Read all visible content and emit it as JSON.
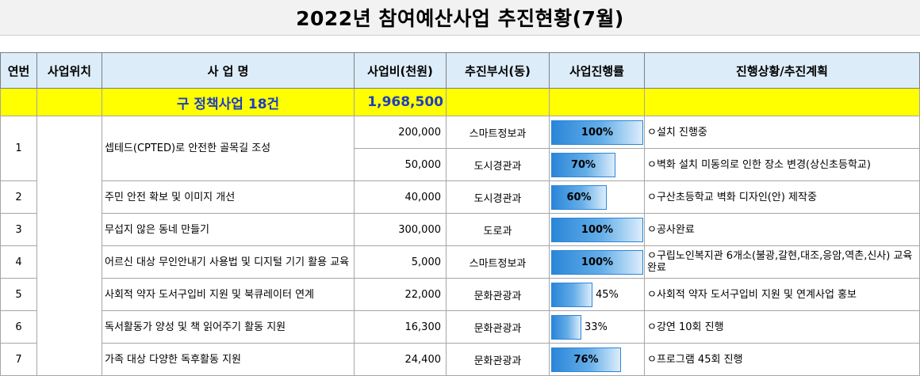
{
  "title": "2022년 참여예산사업 추진현황(7월)",
  "headers": {
    "no": "연번",
    "location": "사업위치",
    "name": "사 업 명",
    "budget": "사업비(천원)",
    "dept": "추진부서(동)",
    "progress": "사업진행률",
    "status": "진행상황/추진계획"
  },
  "summary": {
    "label": "구 정책사업 18건",
    "total": "1,968,500"
  },
  "rows": [
    {
      "no": "1",
      "name": "셉테드(CPTED)로 안전한 골목길 조성",
      "budget": "200,000",
      "dept": "스마트정보과",
      "progress": 100,
      "progress_label": "100%",
      "status": "ㅇ설치 진행중"
    },
    {
      "budget": "50,000",
      "dept": "도시경관과",
      "progress": 70,
      "progress_label": "70%",
      "status": "ㅇ벽화 설치 미동의로 인한 장소 변경(상신초등학교)"
    },
    {
      "no": "2",
      "name": "주민 안전 확보 및 이미지 개선",
      "budget": "40,000",
      "dept": "도시경관과",
      "progress": 60,
      "progress_label": "60%",
      "status": "ㅇ구산초등학교 벽화 디자인(안) 제작중"
    },
    {
      "no": "3",
      "name": "무섭지 않은 동네 만들기",
      "budget": "300,000",
      "dept": "도로과",
      "progress": 100,
      "progress_label": "100%",
      "status": "ㅇ공사완료"
    },
    {
      "no": "4",
      "name": "어르신 대상 무인안내기 사용법 및 디지털 기기 활용 교육",
      "budget": "5,000",
      "dept": "스마트정보과",
      "progress": 100,
      "progress_label": "100%",
      "status": "ㅇ구립노인복지관 6개소(불광,갈현,대조,응암,역촌,신사) 교육완료"
    },
    {
      "no": "5",
      "name": "사회적 약자 도서구입비 지원 및 북큐레이터 연계",
      "budget": "22,000",
      "dept": "문화관광과",
      "progress": 45,
      "progress_label": "45%",
      "status": "ㅇ사회적 약자 도서구입비 지원 및 연계사업 홍보"
    },
    {
      "no": "6",
      "name": "독서활동가 양성 및 책 읽어주기 활동 지원",
      "budget": "16,300",
      "dept": "문화관광과",
      "progress": 33,
      "progress_label": "33%",
      "status": "ㅇ강연 10회 진행"
    },
    {
      "no": "7",
      "name": "가족 대상 다양한 독후활동 지원",
      "budget": "24,400",
      "dept": "문화관광과",
      "progress": 76,
      "progress_label": "76%",
      "status": "ㅇ프로그램 45회 진행"
    }
  ]
}
